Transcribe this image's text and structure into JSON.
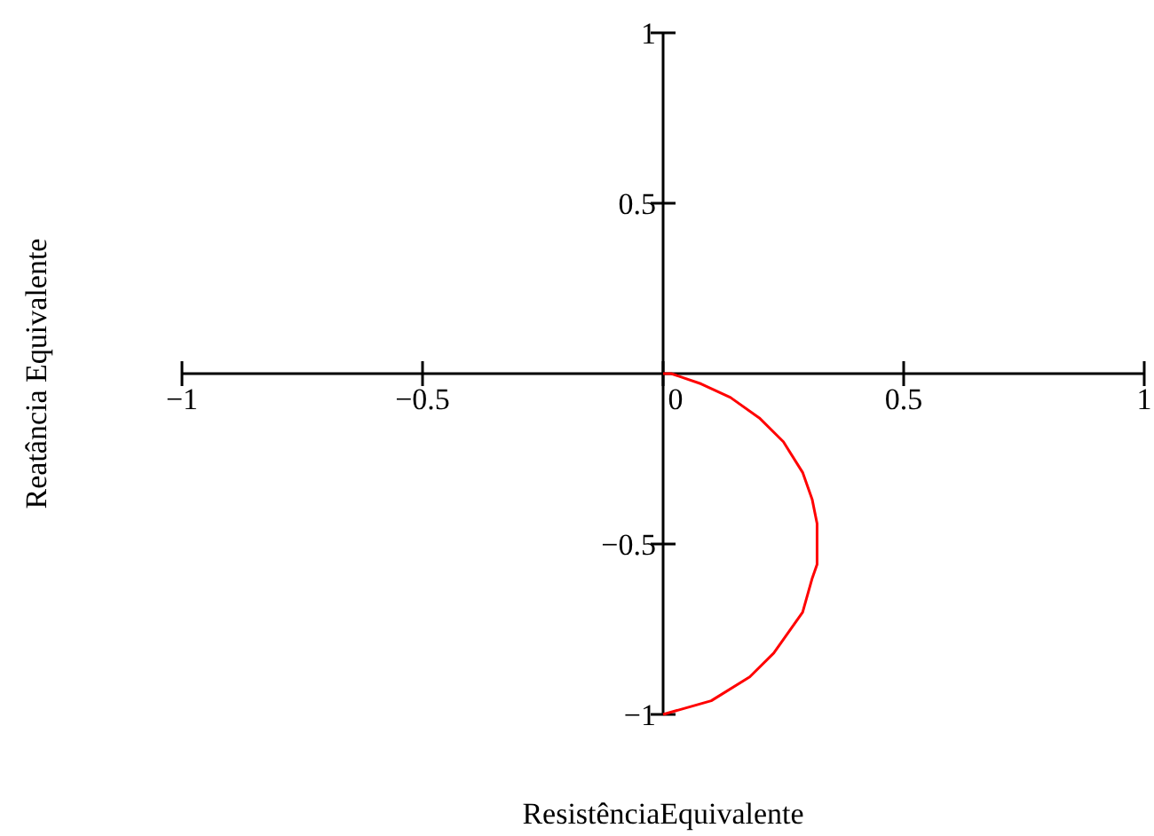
{
  "chart_data": {
    "type": "line",
    "xlabel": "ResistênciaEquivalente",
    "ylabel": "Reatância Equivalente",
    "xlim": [
      -1,
      1
    ],
    "ylim": [
      -1,
      1
    ],
    "xticks": [
      {
        "value": -1,
        "label": "−1"
      },
      {
        "value": -0.5,
        "label": "−0.5"
      },
      0,
      0.5,
      1
    ],
    "yticks": [
      {
        "value": -1,
        "label": "−1"
      },
      {
        "value": -0.5,
        "label": "−0.5"
      },
      0.5,
      1
    ],
    "grid": false,
    "marker": "none",
    "line_style": "solid",
    "series": [
      {
        "color": "#ff0000",
        "x": [
          0,
          0.017,
          0.079,
          0.14,
          0.2,
          0.25,
          0.29,
          0.31,
          0.32,
          0.32,
          0.31,
          0.29,
          0.23,
          0.18,
          0.1,
          0
        ],
        "values": [
          0,
          0,
          -0.03,
          -0.07,
          -0.13,
          -0.2,
          -0.29,
          -0.37,
          -0.44,
          -0.56,
          -0.6,
          -0.7,
          -0.82,
          -0.89,
          -0.96,
          -1
        ]
      }
    ]
  }
}
